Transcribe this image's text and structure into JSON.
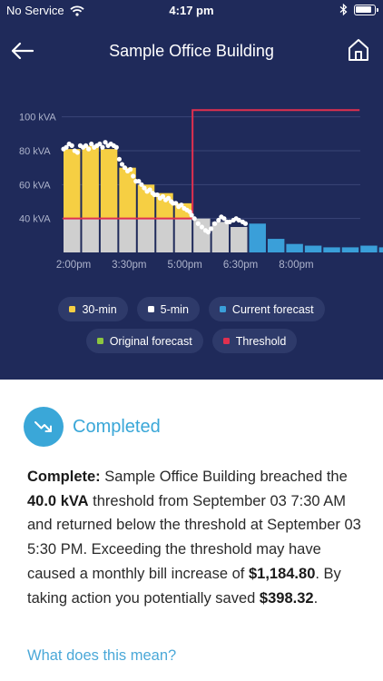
{
  "status_bar": {
    "carrier": "No Service",
    "time": "4:17 pm",
    "icons": [
      "wifi-icon",
      "bluetooth-icon",
      "battery-icon"
    ]
  },
  "nav": {
    "title": "Sample Office Building",
    "back_icon": "arrow-left-icon",
    "home_icon": "home-icon"
  },
  "chart_data": {
    "type": "bar",
    "ylabel_unit": "kVA",
    "y_ticks": [
      "100 kVA",
      "80 kVA",
      "60 kVA",
      "40 kVA"
    ],
    "y_tick_values": [
      100,
      80,
      60,
      40
    ],
    "ylim": [
      20,
      110
    ],
    "x_ticks": [
      "2:00pm",
      "3:30pm",
      "5:00pm",
      "6:30pm",
      "8:00pm"
    ],
    "threshold": {
      "name": "Threshold",
      "color": "#e0304f",
      "points": [
        [
          0,
          40
        ],
        [
          7,
          40
        ],
        [
          7,
          104
        ],
        [
          16,
          104
        ]
      ]
    },
    "bars_30min": {
      "name": "30-min",
      "base_color": "#cfcfcf",
      "excess_color": "#f6cf43",
      "values": [
        81,
        83,
        81,
        70,
        60,
        55,
        49,
        40,
        38,
        35
      ]
    },
    "bars_forecast": {
      "name": "Current forecast",
      "color": "#3a9fd9",
      "start_index": 10,
      "values": [
        37,
        28,
        25,
        24,
        23,
        23,
        24,
        23
      ]
    },
    "points_5min": {
      "name": "5-min",
      "color": "#ffffff",
      "values": [
        [
          0.05,
          81
        ],
        [
          0.2,
          82
        ],
        [
          0.35,
          84
        ],
        [
          0.5,
          83
        ],
        [
          0.65,
          80
        ],
        [
          0.8,
          79
        ],
        [
          0.95,
          83
        ],
        [
          1.1,
          82
        ],
        [
          1.25,
          83
        ],
        [
          1.4,
          81
        ],
        [
          1.55,
          84
        ],
        [
          1.7,
          82
        ],
        [
          1.85,
          83
        ],
        [
          2.0,
          84
        ],
        [
          2.15,
          82
        ],
        [
          2.3,
          85
        ],
        [
          2.45,
          83
        ],
        [
          2.6,
          84
        ],
        [
          2.75,
          83
        ],
        [
          2.9,
          82
        ],
        [
          3.05,
          75
        ],
        [
          3.2,
          72
        ],
        [
          3.35,
          70
        ],
        [
          3.5,
          68
        ],
        [
          3.65,
          69
        ],
        [
          3.8,
          65
        ],
        [
          3.95,
          62
        ],
        [
          4.1,
          62
        ],
        [
          4.25,
          60
        ],
        [
          4.4,
          58
        ],
        [
          4.55,
          56
        ],
        [
          4.7,
          57
        ],
        [
          4.85,
          55
        ],
        [
          4.95,
          54
        ],
        [
          5.1,
          54
        ],
        [
          5.25,
          52
        ],
        [
          5.4,
          53
        ],
        [
          5.55,
          51
        ],
        [
          5.7,
          52
        ],
        [
          5.85,
          50
        ],
        [
          5.95,
          49
        ],
        [
          6.1,
          49
        ],
        [
          6.25,
          47
        ],
        [
          6.4,
          48
        ],
        [
          6.55,
          46
        ],
        [
          6.7,
          45
        ],
        [
          6.85,
          44
        ],
        [
          6.95,
          42
        ],
        [
          7.1,
          40
        ],
        [
          7.3,
          37
        ],
        [
          7.5,
          35
        ],
        [
          7.7,
          33
        ],
        [
          7.85,
          32
        ],
        [
          8.0,
          34
        ],
        [
          8.2,
          37
        ],
        [
          8.4,
          39
        ],
        [
          8.55,
          41
        ],
        [
          8.7,
          40
        ],
        [
          8.85,
          38
        ],
        [
          9.0,
          38
        ],
        [
          9.2,
          39
        ],
        [
          9.35,
          40
        ],
        [
          9.5,
          39
        ],
        [
          9.7,
          38
        ],
        [
          9.85,
          37
        ]
      ]
    }
  },
  "legend": {
    "row1": [
      {
        "label": "30-min",
        "color": "#f6cf43"
      },
      {
        "label": "5-min",
        "color": "#ffffff"
      },
      {
        "label": "Current forecast",
        "color": "#3a9fd9"
      }
    ],
    "row2": [
      {
        "label": "Original forecast",
        "color": "#8cc63f"
      },
      {
        "label": "Threshold",
        "color": "#e0304f"
      }
    ]
  },
  "status": {
    "label": "Completed",
    "icon": "trending-down-icon",
    "color": "#3aa7d8"
  },
  "description": {
    "complete_label": "Complete:",
    "text1": " Sample Office Building breached the ",
    "threshold_value": "40.0 kVA",
    "text2": " threshold from September 03 7:30 AM and returned below the threshold at September 03 5:30 PM. Exceeding the threshold may have caused a monthly bill increase of ",
    "bill_increase": "$1,184.80",
    "text3": ". By taking action you potentially saved ",
    "saved_amount": "$398.32",
    "text4": "."
  },
  "link": {
    "label": "What does this mean?"
  }
}
